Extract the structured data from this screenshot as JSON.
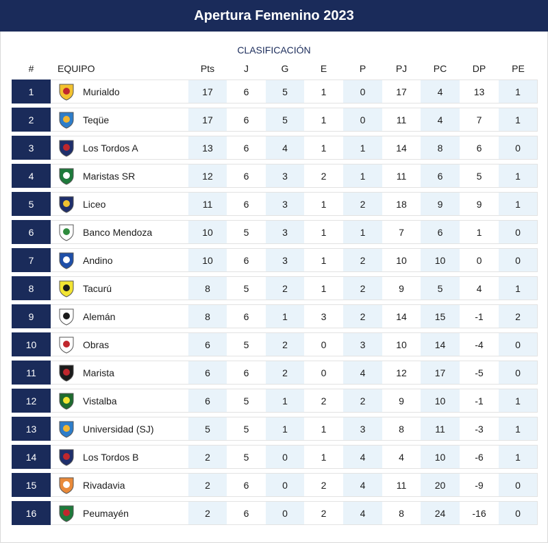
{
  "title": "Apertura Femenino 2023",
  "subtitle": "CLASIFICACIÓN",
  "columns": [
    "#",
    "EQUIPO",
    "Pts",
    "J",
    "G",
    "E",
    "P",
    "PJ",
    "PC",
    "DP",
    "PE"
  ],
  "rows": [
    {
      "pos": "1",
      "team": "Murialdo",
      "logo": "murialdo-crest-icon",
      "pts": "17",
      "j": "6",
      "g": "5",
      "e": "1",
      "p": "0",
      "pj": "17",
      "pc": "4",
      "dp": "13",
      "pe": "1"
    },
    {
      "pos": "2",
      "team": "Teqüe",
      "logo": "teque-crest-icon",
      "pts": "17",
      "j": "6",
      "g": "5",
      "e": "1",
      "p": "0",
      "pj": "11",
      "pc": "4",
      "dp": "7",
      "pe": "1"
    },
    {
      "pos": "3",
      "team": "Los Tordos A",
      "logo": "los-tordos-crest-icon",
      "pts": "13",
      "j": "6",
      "g": "4",
      "e": "1",
      "p": "1",
      "pj": "14",
      "pc": "8",
      "dp": "6",
      "pe": "0"
    },
    {
      "pos": "4",
      "team": "Maristas SR",
      "logo": "maristas-sr-crest-icon",
      "pts": "12",
      "j": "6",
      "g": "3",
      "e": "2",
      "p": "1",
      "pj": "11",
      "pc": "6",
      "dp": "5",
      "pe": "1"
    },
    {
      "pos": "5",
      "team": "Liceo",
      "logo": "liceo-crest-icon",
      "pts": "11",
      "j": "6",
      "g": "3",
      "e": "1",
      "p": "2",
      "pj": "18",
      "pc": "9",
      "dp": "9",
      "pe": "1"
    },
    {
      "pos": "6",
      "team": "Banco Mendoza",
      "logo": "banco-mendoza-crest-icon",
      "pts": "10",
      "j": "5",
      "g": "3",
      "e": "1",
      "p": "1",
      "pj": "7",
      "pc": "6",
      "dp": "1",
      "pe": "0"
    },
    {
      "pos": "7",
      "team": "Andino",
      "logo": "andino-crest-icon",
      "pts": "10",
      "j": "6",
      "g": "3",
      "e": "1",
      "p": "2",
      "pj": "10",
      "pc": "10",
      "dp": "0",
      "pe": "0"
    },
    {
      "pos": "8",
      "team": "Tacurú",
      "logo": "tacuru-crest-icon",
      "pts": "8",
      "j": "5",
      "g": "2",
      "e": "1",
      "p": "2",
      "pj": "9",
      "pc": "5",
      "dp": "4",
      "pe": "1"
    },
    {
      "pos": "9",
      "team": "Alemán",
      "logo": "aleman-crest-icon",
      "pts": "8",
      "j": "6",
      "g": "1",
      "e": "3",
      "p": "2",
      "pj": "14",
      "pc": "15",
      "dp": "-1",
      "pe": "2"
    },
    {
      "pos": "10",
      "team": "Obras",
      "logo": "obras-crest-icon",
      "pts": "6",
      "j": "5",
      "g": "2",
      "e": "0",
      "p": "3",
      "pj": "10",
      "pc": "14",
      "dp": "-4",
      "pe": "0"
    },
    {
      "pos": "11",
      "team": "Marista",
      "logo": "marista-crest-icon",
      "pts": "6",
      "j": "6",
      "g": "2",
      "e": "0",
      "p": "4",
      "pj": "12",
      "pc": "17",
      "dp": "-5",
      "pe": "0"
    },
    {
      "pos": "12",
      "team": "Vistalba",
      "logo": "vistalba-crest-icon",
      "pts": "6",
      "j": "5",
      "g": "1",
      "e": "2",
      "p": "2",
      "pj": "9",
      "pc": "10",
      "dp": "-1",
      "pe": "1"
    },
    {
      "pos": "13",
      "team": "Universidad (SJ)",
      "logo": "universidad-sj-crest-icon",
      "pts": "5",
      "j": "5",
      "g": "1",
      "e": "1",
      "p": "3",
      "pj": "8",
      "pc": "11",
      "dp": "-3",
      "pe": "1"
    },
    {
      "pos": "14",
      "team": "Los Tordos B",
      "logo": "los-tordos-crest-icon",
      "pts": "2",
      "j": "5",
      "g": "0",
      "e": "1",
      "p": "4",
      "pj": "4",
      "pc": "10",
      "dp": "-6",
      "pe": "1"
    },
    {
      "pos": "15",
      "team": "Rivadavia",
      "logo": "rivadavia-crest-icon",
      "pts": "2",
      "j": "6",
      "g": "0",
      "e": "2",
      "p": "4",
      "pj": "11",
      "pc": "20",
      "dp": "-9",
      "pe": "0"
    },
    {
      "pos": "16",
      "team": "Peumayén",
      "logo": "peumayen-crest-icon",
      "pts": "2",
      "j": "6",
      "g": "0",
      "e": "2",
      "p": "4",
      "pj": "8",
      "pc": "24",
      "dp": "-16",
      "pe": "0"
    }
  ]
}
